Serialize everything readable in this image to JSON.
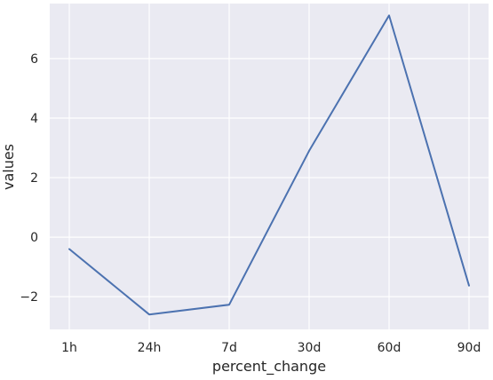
{
  "chart_data": {
    "type": "line",
    "categories": [
      "1h",
      "24h",
      "7d",
      "30d",
      "60d",
      "90d"
    ],
    "series": [
      {
        "values": [
          -0.4,
          -2.6,
          -2.27,
          2.9,
          7.45,
          -1.63
        ],
        "color": "#4c72b0"
      }
    ],
    "xlabel": "percent_change",
    "ylabel": "values",
    "ylim": [
      -3.1,
      7.85
    ],
    "yticks": [
      -2,
      0,
      2,
      4,
      6
    ],
    "ytick_labels": [
      "−2",
      "0",
      "2",
      "4",
      "6"
    ],
    "grid": true,
    "background": "#eaeaf2"
  }
}
